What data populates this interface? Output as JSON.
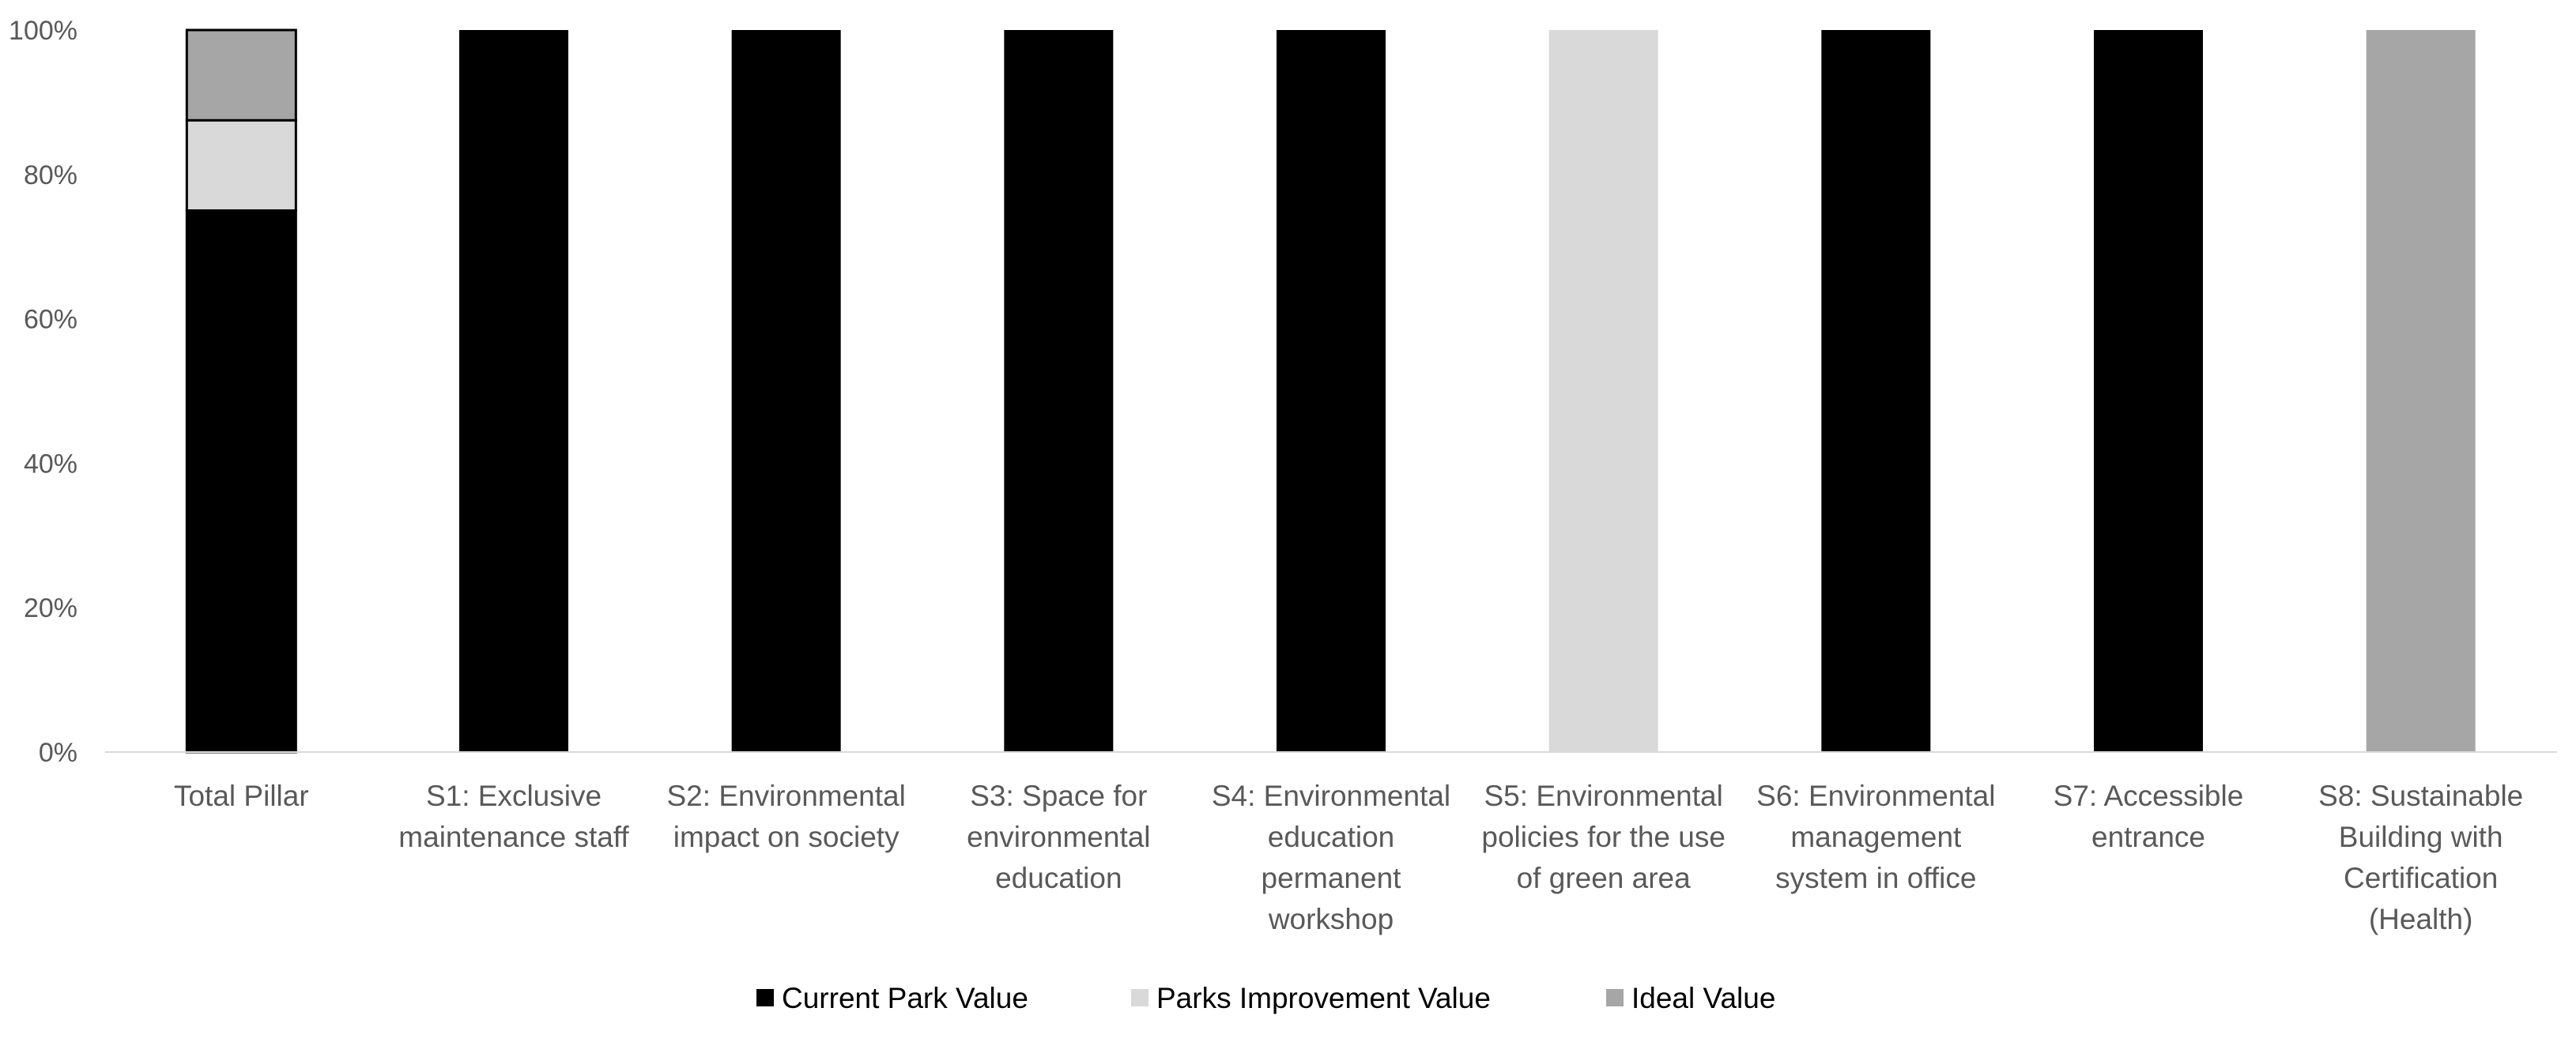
{
  "chart_data": {
    "type": "bar",
    "stacked": true,
    "categories": [
      [
        "Total Pillar"
      ],
      [
        "S1: Exclusive",
        "maintenance staff"
      ],
      [
        "S2: Environmental",
        "impact on society"
      ],
      [
        "S3: Space for",
        "environmental",
        "education"
      ],
      [
        "S4: Environmental",
        "education",
        "permanent",
        "workshop"
      ],
      [
        "S5: Environmental",
        "policies for the use",
        "of green area"
      ],
      [
        "S6: Environmental",
        "management",
        "system in office"
      ],
      [
        "S7: Accessible",
        "entrance"
      ],
      [
        "S8: Sustainable",
        "Building with",
        "Certification",
        "(Health)"
      ]
    ],
    "series": [
      {
        "name": "Current Park Value",
        "color": "#000000",
        "values": [
          75,
          100,
          100,
          100,
          100,
          0,
          100,
          100,
          0
        ]
      },
      {
        "name": "Parks Improvement Value",
        "color": "#d9d9d9",
        "values": [
          12.5,
          0,
          0,
          0,
          0,
          100,
          0,
          0,
          0
        ]
      },
      {
        "name": "Ideal Value",
        "color": "#a6a6a6",
        "values": [
          12.5,
          0,
          0,
          0,
          0,
          0,
          0,
          0,
          100
        ]
      }
    ],
    "y_ticks": [
      "0%",
      "20%",
      "40%",
      "60%",
      "80%",
      "100%"
    ],
    "ylim": [
      0,
      100
    ],
    "grid": false,
    "legend_position": "bottom"
  }
}
